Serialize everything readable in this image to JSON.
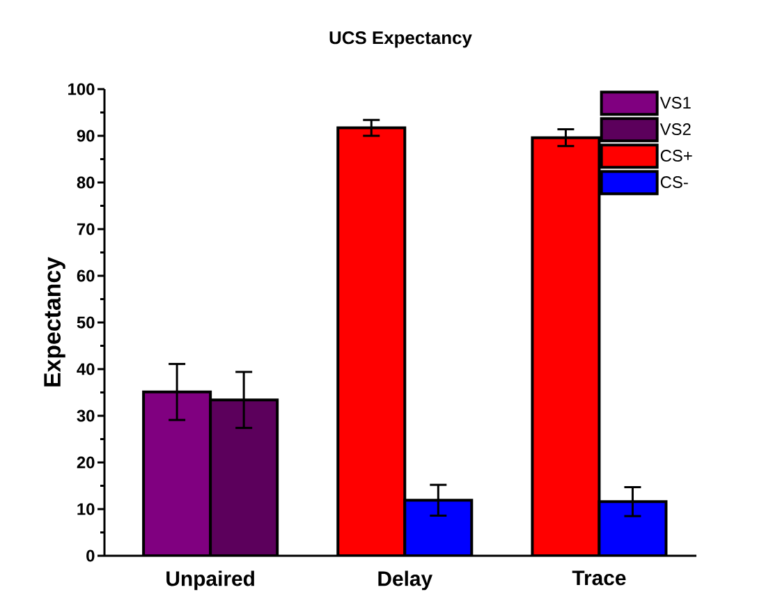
{
  "chart_data": {
    "type": "bar",
    "title": "UCS Expectancy",
    "ylabel": "Expectancy",
    "categories": [
      "Unpaired",
      "Delay",
      "Trace"
    ],
    "series": [
      {
        "name": "VS1",
        "color": "#800080",
        "values": [
          35.1,
          null,
          null
        ],
        "errors": [
          6.0,
          null,
          null
        ]
      },
      {
        "name": "VS2",
        "color": "#5c005c",
        "values": [
          33.4,
          null,
          null
        ],
        "errors": [
          6.0,
          null,
          null
        ]
      },
      {
        "name": "CS+",
        "color": "#ff0000",
        "values": [
          null,
          91.7,
          89.6
        ],
        "errors": [
          null,
          1.7,
          1.8
        ]
      },
      {
        "name": "CS-",
        "color": "#0000ff",
        "values": [
          null,
          11.9,
          11.6
        ],
        "errors": [
          null,
          3.3,
          3.1
        ]
      }
    ],
    "ylim": [
      0,
      100
    ],
    "yticks": [
      0,
      10,
      20,
      30,
      40,
      50,
      60,
      70,
      80,
      90,
      100
    ],
    "legend": "top right",
    "grid": false
  }
}
